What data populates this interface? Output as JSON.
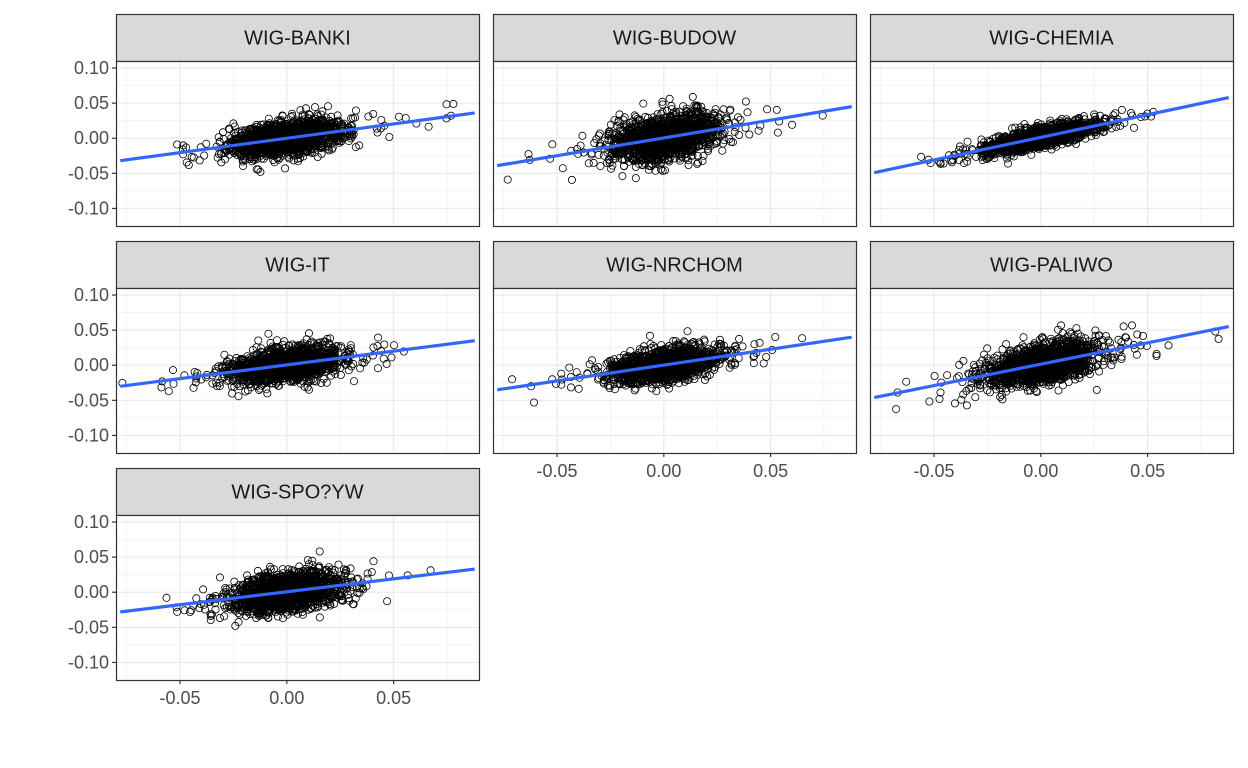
{
  "chart_data": {
    "type": "scatter",
    "layout": "facet-wrap",
    "ncol": 3,
    "title": "",
    "xlabel": "",
    "ylabel": "",
    "xlim": [
      -0.08,
      0.09
    ],
    "ylim": [
      -0.125,
      0.11
    ],
    "x_ticks": [
      -0.05,
      0.0,
      0.05
    ],
    "x_tick_labels": [
      "-0.05",
      "0.00",
      "0.05"
    ],
    "y_ticks": [
      -0.1,
      -0.05,
      0.0,
      0.05,
      0.1
    ],
    "y_tick_labels": [
      "-0.10",
      "-0.05",
      "0.00",
      "0.05",
      "0.10"
    ],
    "grid": true,
    "legend": "none",
    "point_style": "open-circle",
    "point_color": "#000000",
    "fit_line": {
      "method": "linear",
      "color": "#3366FF"
    },
    "approx_points_per_panel": 1500,
    "panels": [
      {
        "label": "WIG-BANKI",
        "fit": {
          "x": [
            -0.078,
            0.088
          ],
          "y": [
            -0.032,
            0.036
          ]
        },
        "spread": 0.012
      },
      {
        "label": "WIG-BUDOW",
        "fit": {
          "x": [
            -0.078,
            0.088
          ],
          "y": [
            -0.039,
            0.045
          ]
        },
        "spread": 0.016
      },
      {
        "label": "WIG-CHEMIA",
        "fit": {
          "x": [
            -0.078,
            0.088
          ],
          "y": [
            -0.049,
            0.058
          ]
        },
        "spread": 0.007
      },
      {
        "label": "WIG-IT",
        "fit": {
          "x": [
            -0.078,
            0.088
          ],
          "y": [
            -0.03,
            0.035
          ]
        },
        "spread": 0.012
      },
      {
        "label": "WIG-NRCHOM",
        "fit": {
          "x": [
            -0.078,
            0.088
          ],
          "y": [
            -0.035,
            0.04
          ]
        },
        "spread": 0.011
      },
      {
        "label": "WIG-PALIWO",
        "fit": {
          "x": [
            -0.078,
            0.088
          ],
          "y": [
            -0.046,
            0.055
          ]
        },
        "spread": 0.014
      },
      {
        "label": "WIG-SPO?YW",
        "fit": {
          "x": [
            -0.078,
            0.088
          ],
          "y": [
            -0.028,
            0.033
          ]
        },
        "spread": 0.014
      }
    ]
  }
}
